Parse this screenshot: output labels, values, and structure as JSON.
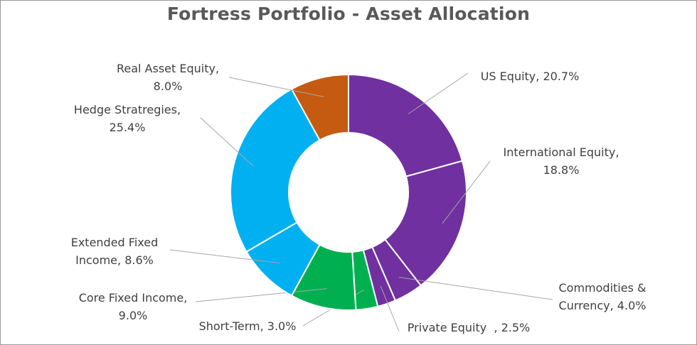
{
  "chart_data": {
    "type": "pie",
    "donut": true,
    "title": "Fortress Portfolio - Asset Allocation",
    "slices": [
      {
        "name": "US Equity",
        "value": 20.7,
        "label_lines": [
          "US Equity, 20.7%"
        ],
        "color": "#7030A0"
      },
      {
        "name": "International Equity",
        "value": 18.8,
        "label_lines": [
          "International Equity,",
          "18.8%"
        ],
        "color": "#7030A0"
      },
      {
        "name": "Commodities & Currency",
        "value": 4.0,
        "label_lines": [
          "Commodities &",
          "Currency, 4.0%"
        ],
        "color": "#7030A0"
      },
      {
        "name": "Private Equity",
        "value": 2.5,
        "label_lines": [
          "Private Equity  , 2.5%"
        ],
        "color": "#7030A0"
      },
      {
        "name": "Short-Term",
        "value": 3.0,
        "label_lines": [
          "Short-Term, 3.0%"
        ],
        "color": "#00B050"
      },
      {
        "name": "Core Fixed Income",
        "value": 9.0,
        "label_lines": [
          "Core Fixed Income,",
          "9.0%"
        ],
        "color": "#00B050"
      },
      {
        "name": "Extended Fixed Income",
        "value": 8.6,
        "label_lines": [
          "Extended Fixed",
          "Income, 8.6%"
        ],
        "color": "#00B0F0"
      },
      {
        "name": "Hedge Stratregies",
        "value": 25.4,
        "label_lines": [
          "Hedge Stratregies,",
          "25.4%"
        ],
        "color": "#00B0F0"
      },
      {
        "name": "Real Asset Equity",
        "value": 8.0,
        "label_lines": [
          "Real Asset Equity,",
          "8.0%"
        ],
        "color": "#C55A11"
      }
    ],
    "legend": "none"
  }
}
